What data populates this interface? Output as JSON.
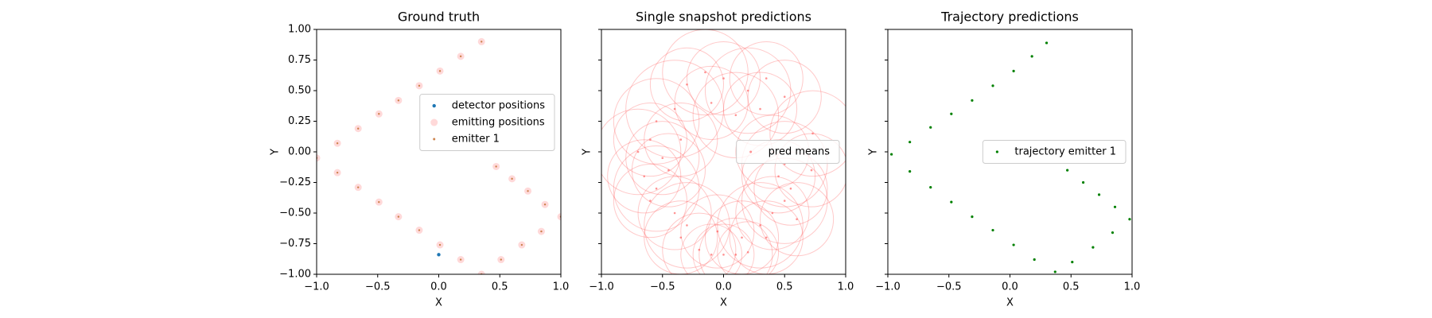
{
  "chart_data": [
    {
      "type": "scatter",
      "title": "Ground truth",
      "xlabel": "X",
      "ylabel": "Y",
      "xlim": [
        -1,
        1
      ],
      "ylim": [
        -1,
        1
      ],
      "xticks": [
        {
          "value": -1,
          "label": "−1.0"
        },
        {
          "value": -0.5,
          "label": "−0.5"
        },
        {
          "value": 0,
          "label": "0.0"
        },
        {
          "value": 0.5,
          "label": "0.5"
        },
        {
          "value": 1,
          "label": "1.0"
        }
      ],
      "yticks": [
        {
          "value": -1,
          "label": "−1.00"
        },
        {
          "value": -0.75,
          "label": "−0.75"
        },
        {
          "value": -0.5,
          "label": "−0.50"
        },
        {
          "value": -0.25,
          "label": "−0.25"
        },
        {
          "value": 0,
          "label": "0.00"
        },
        {
          "value": 0.25,
          "label": "0.25"
        },
        {
          "value": 0.5,
          "label": "0.50"
        },
        {
          "value": 0.75,
          "label": "0.75"
        },
        {
          "value": 1,
          "label": "1.00"
        }
      ],
      "legend": "center right",
      "series": [
        {
          "name": "detector positions",
          "color": "#1f77b4",
          "x": [
            0
          ],
          "y": [
            -0.84
          ]
        },
        {
          "name": "emitting positions",
          "color": "#ffb3b3",
          "x": [
            0.47,
            0.6,
            0.73,
            0.87,
            1.0,
            0.84,
            0.68,
            0.51,
            0.35,
            0.18,
            0.01,
            -0.16,
            -0.33,
            -0.49,
            -0.66,
            -0.83,
            -1.0,
            -0.83,
            -0.66,
            -0.49,
            -0.33,
            -0.16,
            0.01,
            0.18,
            0.35
          ],
          "y": [
            -0.12,
            -0.22,
            -0.32,
            -0.43,
            -0.53,
            -0.65,
            -0.76,
            -0.88,
            -1.0,
            -0.88,
            -0.76,
            -0.64,
            -0.53,
            -0.41,
            -0.29,
            -0.17,
            -0.05,
            0.07,
            0.19,
            0.31,
            0.42,
            0.54,
            0.66,
            0.78,
            0.9
          ]
        },
        {
          "name": "emitter 1",
          "color": "#c8773c",
          "x": [
            0.47,
            0.6,
            0.73,
            0.87,
            1.0,
            0.84,
            0.68,
            0.51,
            0.35,
            0.18,
            0.01,
            -0.16,
            -0.33,
            -0.49,
            -0.66,
            -0.83,
            -1.0,
            -0.83,
            -0.66,
            -0.49,
            -0.33,
            -0.16,
            0.01,
            0.18,
            0.35
          ],
          "y": [
            -0.12,
            -0.22,
            -0.32,
            -0.43,
            -0.53,
            -0.65,
            -0.76,
            -0.88,
            -1.0,
            -0.88,
            -0.76,
            -0.64,
            -0.53,
            -0.41,
            -0.29,
            -0.17,
            -0.05,
            0.07,
            0.19,
            0.31,
            0.42,
            0.54,
            0.66,
            0.78,
            0.9
          ]
        }
      ]
    },
    {
      "type": "scatter",
      "title": "Single snapshot predictions",
      "xlabel": "X",
      "ylabel": "Y",
      "xlim": [
        -1,
        1
      ],
      "ylim": [
        -1,
        1
      ],
      "xticks": [
        {
          "value": -1,
          "label": "−1.0"
        },
        {
          "value": -0.5,
          "label": "−0.5"
        },
        {
          "value": 0,
          "label": "0.0"
        },
        {
          "value": 0.5,
          "label": "0.5"
        },
        {
          "value": 1,
          "label": "1.0"
        }
      ],
      "yticks": [
        -1,
        -0.75,
        -0.5,
        -0.25,
        0,
        0.25,
        0.5,
        0.75,
        1
      ],
      "legend": "center right",
      "series": [
        {
          "name": "pred means",
          "color": "#ff4d4d",
          "x": [
            -0.3,
            -0.15,
            0.0,
            0.2,
            0.35,
            0.5,
            -0.4,
            -0.1,
            0.1,
            0.3,
            -0.55,
            -0.6,
            -0.7,
            -0.5,
            -0.65,
            -0.55,
            -0.45,
            -0.35,
            -0.6,
            -0.4,
            -0.3,
            -0.35,
            -0.2,
            -0.1,
            0.0,
            0.1,
            0.2,
            -0.05,
            0.15,
            0.3,
            0.4,
            0.5,
            0.55,
            0.45,
            0.6,
            0.35,
            0.5,
            0.4,
            0.72,
            0.73
          ],
          "y": [
            0.55,
            0.65,
            0.6,
            0.5,
            0.6,
            0.45,
            0.35,
            0.4,
            0.3,
            0.35,
            0.25,
            0.1,
            0.0,
            -0.05,
            -0.2,
            -0.3,
            -0.15,
            0.1,
            -0.4,
            -0.5,
            -0.6,
            -0.7,
            -0.8,
            -0.84,
            -0.84,
            -0.84,
            -0.82,
            -0.65,
            -0.7,
            -0.6,
            -0.5,
            -0.4,
            -0.3,
            -0.2,
            -0.55,
            -0.7,
            -0.1,
            0.0,
            -0.15,
            0.15
          ],
          "sizes": [
            0.3,
            0.35,
            0.3,
            0.35,
            0.3,
            0.3,
            0.4,
            0.3,
            0.35,
            0.3,
            0.35,
            0.3,
            0.35,
            0.3,
            0.3,
            0.35,
            0.3,
            0.3,
            0.3,
            0.3,
            0.35,
            0.3,
            0.3,
            0.25,
            0.25,
            0.3,
            0.25,
            0.3,
            0.3,
            0.35,
            0.3,
            0.35,
            0.3,
            0.3,
            0.3,
            0.3,
            0.35,
            0.3,
            0.3,
            0.35
          ]
        }
      ]
    },
    {
      "type": "scatter",
      "title": "Trajectory predictions",
      "xlabel": "X",
      "ylabel": "Y",
      "xlim": [
        -1,
        1
      ],
      "ylim": [
        -1,
        1
      ],
      "xticks": [
        {
          "value": -1,
          "label": "−1.0"
        },
        {
          "value": -0.5,
          "label": "−0.5"
        },
        {
          "value": 0,
          "label": "0.0"
        },
        {
          "value": 0.5,
          "label": "0.5"
        },
        {
          "value": 1,
          "label": "1.0"
        }
      ],
      "yticks": [
        -1,
        -0.75,
        -0.5,
        -0.25,
        0,
        0.25,
        0.5,
        0.75,
        1
      ],
      "legend": "center right",
      "series": [
        {
          "name": "trajectory emitter 1",
          "color": "#008000",
          "x": [
            0.47,
            0.6,
            0.73,
            0.86,
            0.98,
            0.84,
            0.68,
            0.51,
            0.37,
            0.2,
            0.03,
            -0.14,
            -0.31,
            -0.48,
            -0.65,
            -0.82,
            -0.97,
            -0.82,
            -0.65,
            -0.48,
            -0.31,
            -0.14,
            0.03,
            0.18,
            0.3
          ],
          "y": [
            -0.15,
            -0.25,
            -0.35,
            -0.45,
            -0.55,
            -0.66,
            -0.78,
            -0.9,
            -0.98,
            -0.88,
            -0.76,
            -0.64,
            -0.53,
            -0.41,
            -0.29,
            -0.16,
            -0.02,
            0.08,
            0.2,
            0.31,
            0.42,
            0.54,
            0.66,
            0.78,
            0.89
          ]
        }
      ]
    }
  ]
}
